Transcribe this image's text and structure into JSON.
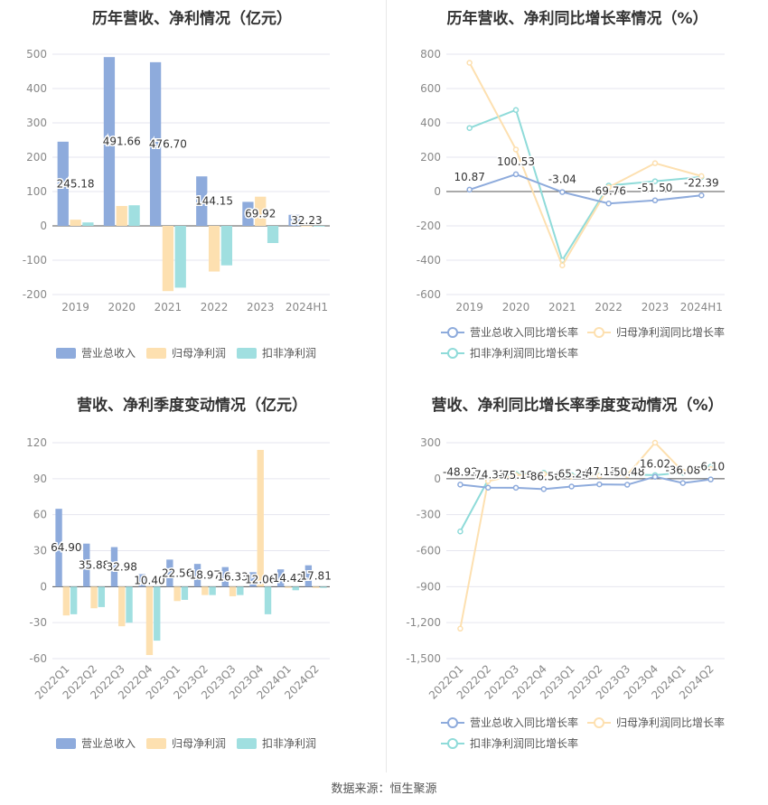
{
  "colors": {
    "revenue": "#8eabdc",
    "net_profit": "#fde0b0",
    "deducted_profit": "#a0dfe0",
    "revenue_line": "#8eabdc",
    "net_line": "#fde0b0",
    "deducted_line": "#8fdbd9",
    "grid": "#e6e6ef",
    "axis_text": "#888888"
  },
  "source": "数据来源：恒生聚源",
  "legends": {
    "bars": [
      "营业总收入",
      "归母净利润",
      "扣非净利润"
    ],
    "lines": [
      "营业总收入同比增长率",
      "归母净利润同比增长率",
      "扣非净利润同比增长率"
    ]
  },
  "chart_data": [
    {
      "type": "bar",
      "title": "历年营收、净利情况（亿元）",
      "categories": [
        "2019",
        "2020",
        "2021",
        "2022",
        "2023",
        "2024H1"
      ],
      "yticks": [
        "500",
        "400",
        "300",
        "200",
        "100",
        "0",
        "-100",
        "-200"
      ],
      "ylim": [
        -200,
        500
      ],
      "series": [
        {
          "name": "营业总收入",
          "values": [
            245.18,
            491.66,
            476.7,
            144.15,
            69.92,
            32.23
          ]
        },
        {
          "name": "归母净利润",
          "values": [
            18,
            58,
            -190,
            -133,
            85,
            -1
          ]
        },
        {
          "name": "扣非净利润",
          "values": [
            10,
            60,
            -180,
            -115,
            -50,
            -1
          ]
        }
      ],
      "data_labels": [
        "245.18",
        "491.66",
        "476.70",
        "144.15",
        "69.92",
        "32.23"
      ],
      "legend": "bottom"
    },
    {
      "type": "line",
      "title": "历年营收、净利同比增长率情况（%）",
      "categories": [
        "2019",
        "2020",
        "2021",
        "2022",
        "2023",
        "2024H1"
      ],
      "yticks": [
        "800",
        "600",
        "400",
        "200",
        "0",
        "-200",
        "-400",
        "-600"
      ],
      "ylim": [
        -600,
        800
      ],
      "series": [
        {
          "name": "营业总收入同比增长率",
          "values": [
            10.87,
            100.53,
            -3.04,
            -69.76,
            -51.5,
            -22.39
          ]
        },
        {
          "name": "归母净利润同比增长率",
          "values": [
            750,
            245,
            -430,
            25,
            165,
            90
          ]
        },
        {
          "name": "扣非净利润同比增长率",
          "values": [
            370,
            475,
            -400,
            35,
            60,
            85
          ]
        }
      ],
      "data_labels": [
        "10.87",
        "100.53",
        "-3.04",
        "-69.76",
        "-51.50",
        "-22.39"
      ],
      "legend": "bottom"
    },
    {
      "type": "bar",
      "title": "营收、净利季度变动情况（亿元）",
      "categories": [
        "2022Q1",
        "2022Q2",
        "2022Q3",
        "2022Q4",
        "2023Q1",
        "2023Q2",
        "2023Q3",
        "2023Q4",
        "2024Q1",
        "2024Q2"
      ],
      "yticks": [
        "120",
        "90",
        "60",
        "30",
        "0",
        "-30",
        "-60"
      ],
      "ylim": [
        -60,
        120
      ],
      "series": [
        {
          "name": "营业总收入",
          "values": [
            64.9,
            35.88,
            32.98,
            10.4,
            22.56,
            18.97,
            16.33,
            12.06,
            14.42,
            17.81
          ]
        },
        {
          "name": "归母净利润",
          "values": [
            -24,
            -18,
            -33,
            -57,
            -12,
            -7,
            -8,
            114,
            -1,
            -1
          ]
        },
        {
          "name": "扣非净利润",
          "values": [
            -23,
            -17,
            -30,
            -45,
            -11,
            -7,
            -7,
            -23,
            -3,
            -1
          ]
        }
      ],
      "data_labels": [
        "64.90",
        "35.88",
        "32.98",
        "10.40",
        "22.56",
        "18.97",
        "16.33",
        "12.06",
        "14.42",
        "17.81"
      ],
      "legend": "bottom"
    },
    {
      "type": "line",
      "title": "营收、净利同比增长率季度变动情况（%）",
      "categories": [
        "2022Q1",
        "2022Q2",
        "2022Q3",
        "2022Q4",
        "2023Q1",
        "2023Q2",
        "2023Q3",
        "2023Q4",
        "2024Q1",
        "2024Q2"
      ],
      "yticks": [
        "300",
        "0",
        "-300",
        "-600",
        "-900",
        "-1,200",
        "-1,500"
      ],
      "ylim": [
        -1500,
        300
      ],
      "series": [
        {
          "name": "营业总收入同比增长率",
          "values": [
            -48.92,
            -74.33,
            -75.19,
            -86.56,
            -65.24,
            -47.13,
            -50.48,
            16.02,
            -36.08,
            -6.1
          ]
        },
        {
          "name": "归母净利润同比增长率",
          "values": [
            -1250,
            -20,
            30,
            40,
            20,
            25,
            30,
            300,
            60,
            80
          ]
        },
        {
          "name": "扣非净利润同比增长率",
          "values": [
            -440,
            -10,
            40,
            50,
            30,
            30,
            35,
            30,
            50,
            100
          ]
        }
      ],
      "data_labels": [
        "-48.92",
        "-74.33",
        "-75.19",
        "-86.56",
        "-65.24",
        "-47.13",
        "-50.48",
        "16.02",
        "-36.08",
        "-6.10"
      ],
      "legend": "bottom"
    }
  ]
}
